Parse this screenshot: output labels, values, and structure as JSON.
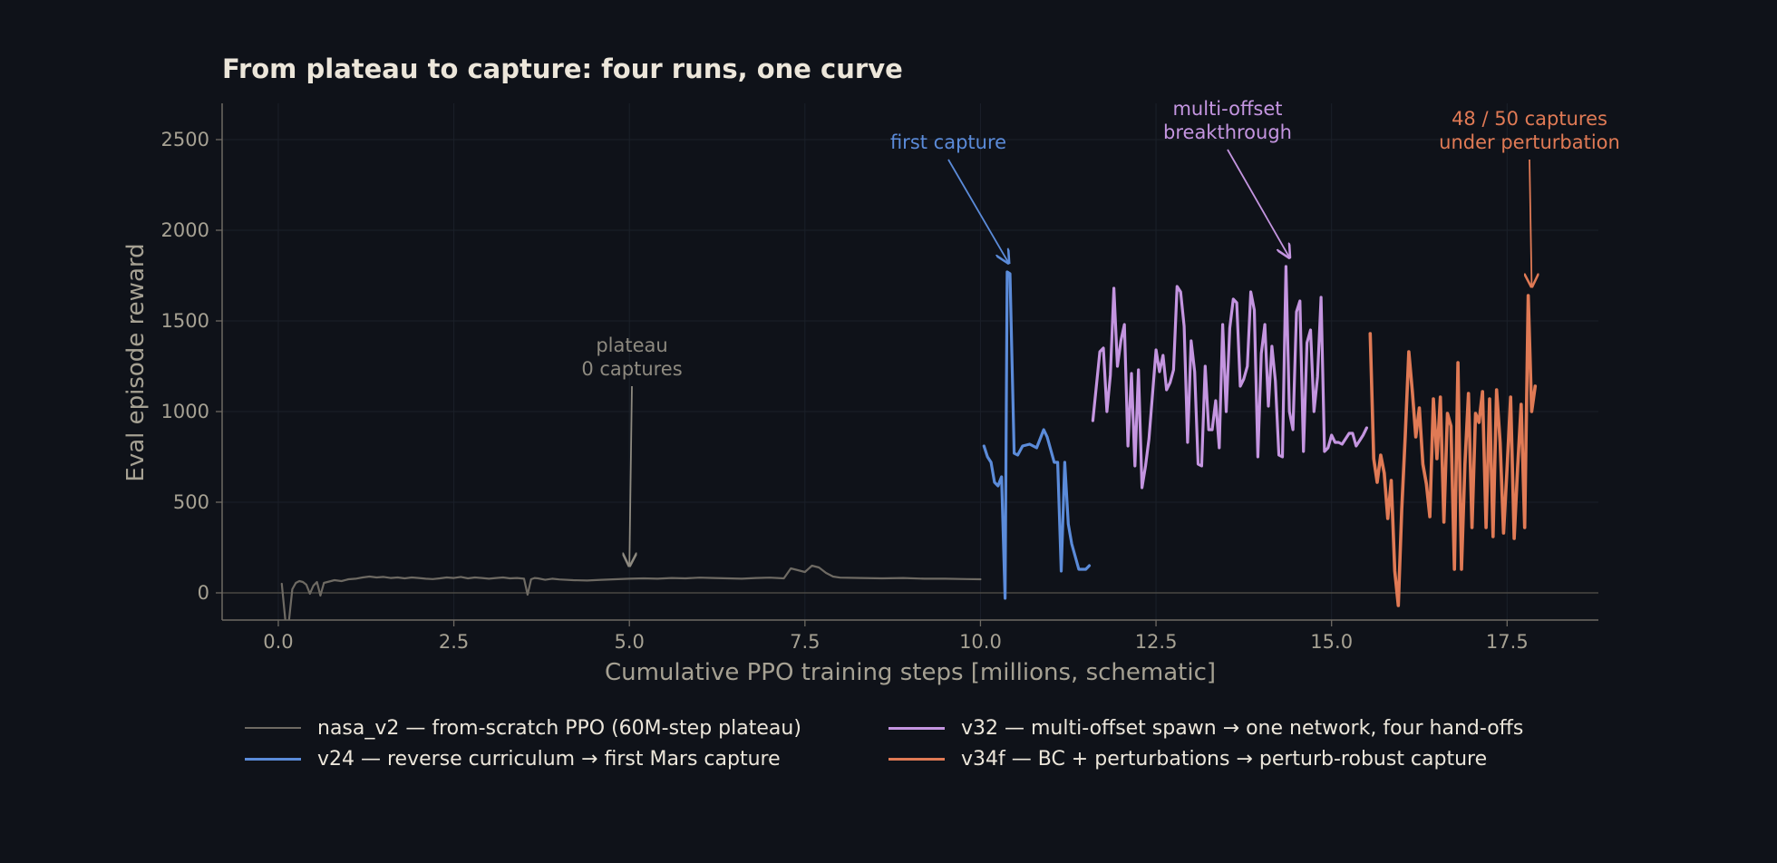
{
  "colors": {
    "background": "#0f1219",
    "axis": "#6e6a63",
    "grid": "#1b2029",
    "tick_text": "#a6a193",
    "title_text": "#ece6da",
    "zero_line": "#4a4843"
  },
  "chart_data": {
    "type": "line",
    "title": "From plateau to capture: four runs, one curve",
    "xlabel": "Cumulative PPO training steps  [millions, schematic]",
    "ylabel": "Eval episode reward",
    "xlim": [
      -0.8,
      18.8
    ],
    "ylim": [
      -150,
      2700
    ],
    "xticks": [
      0.0,
      2.5,
      5.0,
      7.5,
      10.0,
      12.5,
      15.0,
      17.5
    ],
    "xtick_labels": [
      "0.0",
      "2.5",
      "5.0",
      "7.5",
      "10.0",
      "12.5",
      "15.0",
      "17.5"
    ],
    "yticks": [
      0,
      500,
      1000,
      1500,
      2000,
      2500
    ],
    "ytick_labels": [
      "0",
      "500",
      "1000",
      "1500",
      "2000",
      "2500"
    ],
    "grid": true,
    "legend_position": "bottom",
    "series": [
      {
        "name": "nasa_v2 — from-scratch PPO  (60M-step plateau)",
        "color": "#6e6a63",
        "x": [
          0.05,
          0.1,
          0.15,
          0.2,
          0.25,
          0.3,
          0.35,
          0.4,
          0.45,
          0.5,
          0.55,
          0.6,
          0.65,
          0.7,
          0.8,
          0.9,
          1.0,
          1.1,
          1.2,
          1.3,
          1.4,
          1.5,
          1.6,
          1.7,
          1.8,
          1.9,
          2.0,
          2.1,
          2.2,
          2.3,
          2.4,
          2.5,
          2.6,
          2.7,
          2.8,
          2.9,
          3.0,
          3.1,
          3.2,
          3.3,
          3.4,
          3.5,
          3.55,
          3.6,
          3.65,
          3.7,
          3.8,
          3.9,
          4.0,
          4.2,
          4.4,
          4.6,
          4.8,
          5.0,
          5.2,
          5.4,
          5.6,
          5.8,
          6.0,
          6.2,
          6.4,
          6.6,
          6.8,
          7.0,
          7.2,
          7.3,
          7.4,
          7.5,
          7.6,
          7.7,
          7.8,
          7.9,
          8.0,
          8.3,
          8.6,
          8.9,
          9.2,
          9.5,
          9.8,
          10.0
        ],
        "y": [
          50,
          -150,
          -160,
          20,
          55,
          65,
          60,
          45,
          -5,
          40,
          60,
          -15,
          55,
          60,
          70,
          65,
          75,
          78,
          85,
          90,
          85,
          88,
          82,
          85,
          80,
          85,
          82,
          78,
          76,
          80,
          85,
          82,
          88,
          80,
          85,
          82,
          78,
          82,
          85,
          80,
          82,
          78,
          -10,
          75,
          82,
          80,
          72,
          78,
          74,
          70,
          68,
          72,
          75,
          78,
          80,
          78,
          82,
          80,
          84,
          82,
          80,
          78,
          82,
          84,
          80,
          135,
          125,
          115,
          150,
          140,
          110,
          90,
          84,
          82,
          80,
          82,
          78,
          78,
          76,
          75
        ]
      },
      {
        "name": "v24 — reverse curriculum  →  first Mars capture",
        "color": "#5b8bd9",
        "x": [
          10.05,
          10.1,
          10.15,
          10.2,
          10.25,
          10.3,
          10.35,
          10.38,
          10.42,
          10.48,
          10.53,
          10.6,
          10.7,
          10.8,
          10.9,
          10.95,
          11.0,
          11.05,
          11.1,
          11.15,
          11.2,
          11.25,
          11.3,
          11.4,
          11.5,
          11.55
        ],
        "y": [
          810,
          750,
          720,
          610,
          590,
          640,
          -30,
          1770,
          1760,
          770,
          760,
          810,
          820,
          800,
          900,
          860,
          790,
          720,
          720,
          120,
          720,
          380,
          270,
          130,
          130,
          150
        ]
      },
      {
        "name": "v32 — multi-offset spawn  →  one network, four hand-offs",
        "color": "#c495e0",
        "x": [
          11.6,
          11.7,
          11.75,
          11.8,
          11.85,
          11.9,
          11.95,
          12.0,
          12.05,
          12.1,
          12.15,
          12.2,
          12.25,
          12.3,
          12.35,
          12.4,
          12.5,
          12.55,
          12.6,
          12.65,
          12.7,
          12.75,
          12.8,
          12.85,
          12.9,
          12.95,
          13.0,
          13.05,
          13.1,
          13.15,
          13.2,
          13.25,
          13.3,
          13.35,
          13.4,
          13.45,
          13.5,
          13.55,
          13.6,
          13.65,
          13.7,
          13.75,
          13.8,
          13.85,
          13.9,
          13.95,
          14.0,
          14.05,
          14.1,
          14.15,
          14.2,
          14.25,
          14.3,
          14.35,
          14.4,
          14.45,
          14.5,
          14.55,
          14.6,
          14.65,
          14.7,
          14.75,
          14.8,
          14.85,
          14.9,
          14.95,
          15.0,
          15.05,
          15.1,
          15.15,
          15.2,
          15.25,
          15.3,
          15.35,
          15.4,
          15.45,
          15.5
        ],
        "y": [
          950,
          1330,
          1350,
          1000,
          1200,
          1680,
          1250,
          1390,
          1480,
          810,
          1210,
          700,
          1230,
          580,
          700,
          850,
          1340,
          1220,
          1310,
          1120,
          1160,
          1230,
          1690,
          1660,
          1470,
          830,
          1390,
          1220,
          710,
          700,
          1250,
          900,
          900,
          1060,
          800,
          1480,
          1000,
          1460,
          1620,
          1600,
          1140,
          1180,
          1250,
          1660,
          1560,
          750,
          1320,
          1480,
          1030,
          1360,
          1170,
          760,
          750,
          1800,
          1000,
          900,
          1550,
          1610,
          780,
          1380,
          1450,
          1000,
          1190,
          1630,
          780,
          800,
          870,
          830,
          830,
          820,
          850,
          880,
          880,
          810,
          840,
          870,
          910
        ]
      },
      {
        "name": "v34f — BC + perturbations  →  perturb-robust capture",
        "color": "#e07a55",
        "x": [
          15.55,
          15.6,
          15.65,
          15.7,
          15.75,
          15.8,
          15.85,
          15.9,
          15.95,
          16.0,
          16.05,
          16.1,
          16.15,
          16.2,
          16.25,
          16.3,
          16.35,
          16.4,
          16.45,
          16.5,
          16.55,
          16.6,
          16.65,
          16.7,
          16.75,
          16.8,
          16.85,
          16.9,
          16.95,
          17.0,
          17.05,
          17.1,
          17.15,
          17.2,
          17.25,
          17.3,
          17.35,
          17.4,
          17.45,
          17.5,
          17.55,
          17.6,
          17.65,
          17.7,
          17.75,
          17.8,
          17.85,
          17.9
        ],
        "y": [
          1430,
          740,
          610,
          760,
          660,
          410,
          620,
          120,
          -70,
          460,
          870,
          1330,
          1110,
          860,
          1020,
          710,
          600,
          420,
          1070,
          740,
          1080,
          390,
          990,
          920,
          130,
          1270,
          130,
          710,
          1100,
          360,
          990,
          940,
          1110,
          360,
          1070,
          310,
          1120,
          830,
          330,
          690,
          1080,
          300,
          690,
          1040,
          360,
          1640,
          1000,
          1140
        ]
      }
    ],
    "annotations": [
      {
        "lines": [
          "plateau",
          "0 captures"
        ],
        "color": "#8e8a80",
        "point": [
          5.0,
          110
        ]
      },
      {
        "lines": [
          "first capture"
        ],
        "color": "#5b8bd9",
        "point": [
          10.4,
          1780
        ]
      },
      {
        "lines": [
          "multi-offset",
          "breakthrough"
        ],
        "color": "#c495e0",
        "point": [
          14.4,
          1810
        ]
      },
      {
        "lines": [
          "48 / 50 captures",
          "under perturbation"
        ],
        "color": "#e07a55",
        "point": [
          17.85,
          1650
        ]
      }
    ]
  }
}
